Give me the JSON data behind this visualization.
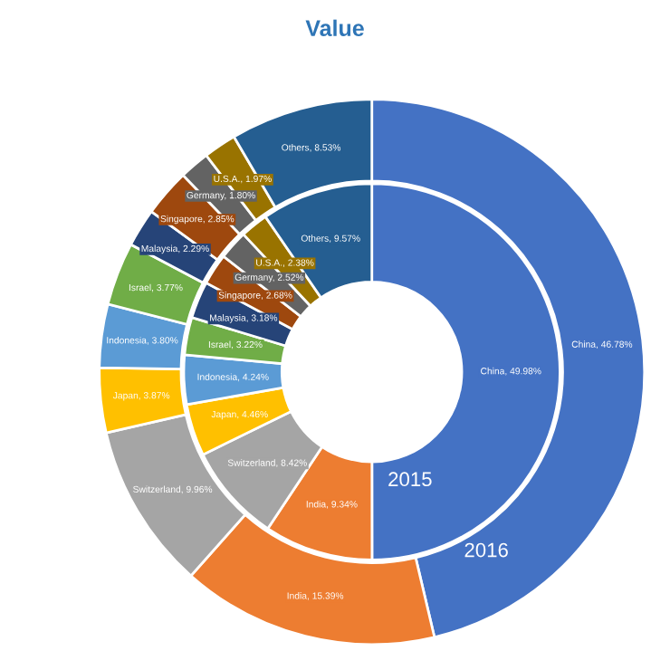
{
  "chart_data": {
    "type": "donut",
    "title": "Value",
    "categories": [
      "China",
      "India",
      "Switzerland",
      "Japan",
      "Indonesia",
      "Israel",
      "Malaysia",
      "Singapore",
      "Germany",
      "U.S.A.",
      "Others"
    ],
    "colors": [
      "#4472c4",
      "#ed7d31",
      "#a5a5a5",
      "#ffc000",
      "#5b9bd5",
      "#70ad47",
      "#264478",
      "#9e480e",
      "#636363",
      "#997300",
      "#255e91"
    ],
    "series": [
      {
        "name": "2016",
        "values": [
          46.78,
          15.39,
          9.96,
          3.87,
          3.8,
          3.77,
          2.29,
          2.85,
          1.8,
          1.97,
          8.53
        ],
        "value_labels": [
          "46.78%",
          "15.39%",
          "9.96%",
          "3.87%",
          "3.80%",
          "3.77%",
          "2.29%",
          "2.85%",
          "1.80%",
          "1.97%",
          "8.53%"
        ]
      },
      {
        "name": "2015",
        "values": [
          49.98,
          9.34,
          8.42,
          4.46,
          4.24,
          3.22,
          3.18,
          2.68,
          2.52,
          2.38,
          9.57
        ],
        "value_labels": [
          "China, 49.98%",
          "India, 9.34%",
          "Switzerland, 8.42%",
          "Japan, 4.46%",
          "Indonesia, 4.24%",
          "Israel, 3.22%",
          "Malaysia, 3.18%",
          "Singapore, 2.68%",
          "Germany, 2.52%",
          "U.S.A., 2.38%",
          "Others, 9.57%"
        ]
      }
    ]
  }
}
